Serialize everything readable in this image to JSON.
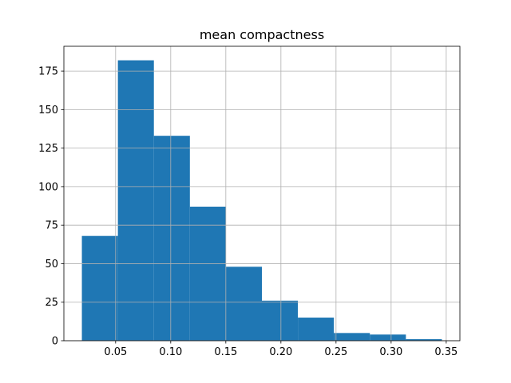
{
  "chart_data": {
    "type": "bar",
    "subtype": "histogram",
    "title": "mean compactness",
    "xlabel": "",
    "ylabel": "",
    "bins": [
      {
        "x0": 0.01938,
        "x1": 0.05205,
        "count": 68
      },
      {
        "x0": 0.05205,
        "x1": 0.08472,
        "count": 182
      },
      {
        "x0": 0.08472,
        "x1": 0.11739,
        "count": 133
      },
      {
        "x0": 0.11739,
        "x1": 0.15006,
        "count": 87
      },
      {
        "x0": 0.15006,
        "x1": 0.18273,
        "count": 48
      },
      {
        "x0": 0.18273,
        "x1": 0.2154,
        "count": 26
      },
      {
        "x0": 0.2154,
        "x1": 0.24807,
        "count": 15
      },
      {
        "x0": 0.24807,
        "x1": 0.28074,
        "count": 5
      },
      {
        "x0": 0.28074,
        "x1": 0.31341,
        "count": 4
      },
      {
        "x0": 0.31341,
        "x1": 0.34608,
        "count": 1
      }
    ],
    "xlim": [
      0.003045,
      0.362415
    ],
    "ylim": [
      0,
      191.1
    ],
    "xticks": [
      0.05,
      0.1,
      0.15,
      0.2,
      0.25,
      0.3,
      0.35
    ],
    "xtick_labels": [
      "0.05",
      "0.10",
      "0.15",
      "0.20",
      "0.25",
      "0.30",
      "0.35"
    ],
    "yticks": [
      0,
      25,
      50,
      75,
      100,
      125,
      150,
      175
    ],
    "ytick_labels": [
      "0",
      "25",
      "50",
      "75",
      "100",
      "125",
      "150",
      "175"
    ],
    "grid": true,
    "bar_color": "#1f77b4",
    "grid_color": "#b0b0b0"
  }
}
